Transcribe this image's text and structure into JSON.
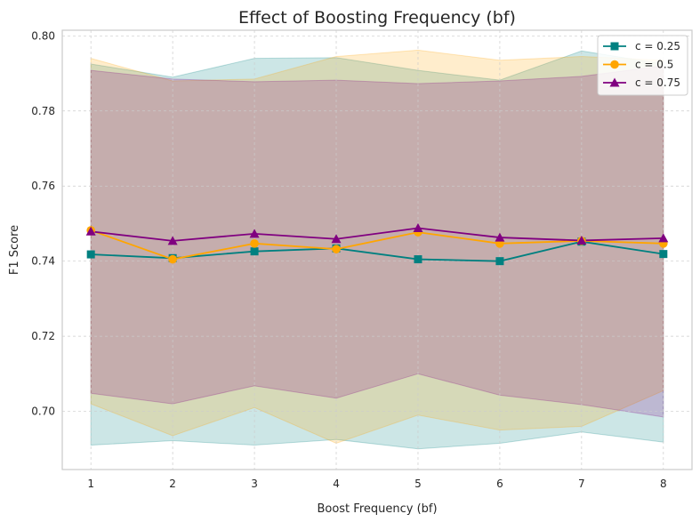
{
  "chart_data": {
    "type": "line",
    "title": "Effect of Boosting Frequency (bf)",
    "xlabel": "Boost Frequency (bf)",
    "ylabel": "F1 Score",
    "x": [
      1,
      2,
      3,
      4,
      5,
      6,
      7,
      8
    ],
    "xlim": [
      0.65,
      8.35
    ],
    "ylim": [
      0.6845,
      0.8015
    ],
    "xticks": [
      1,
      2,
      3,
      4,
      5,
      6,
      7,
      8
    ],
    "yticks": [
      "0.70",
      "0.72",
      "0.74",
      "0.76",
      "0.78",
      "0.80"
    ],
    "grid": true,
    "legend_position": "top-right",
    "series": [
      {
        "name": "c = 0.25",
        "label": "c = 0.25",
        "color": "#008080",
        "marker": "square",
        "values": [
          0.7418,
          0.7408,
          0.7426,
          0.7434,
          0.7405,
          0.74,
          0.7452,
          0.7419
        ],
        "upper": [
          0.7925,
          0.789,
          0.794,
          0.7942,
          0.7908,
          0.7882,
          0.796,
          0.7925
        ],
        "lower": [
          0.691,
          0.6922,
          0.691,
          0.6925,
          0.69,
          0.6915,
          0.6945,
          0.6918
        ]
      },
      {
        "name": "c = 0.5",
        "label": "c = 0.5",
        "color": "#FFA500",
        "marker": "circle",
        "values": [
          0.7482,
          0.7405,
          0.7447,
          0.7432,
          0.7477,
          0.7447,
          0.7454,
          0.7447
        ],
        "upper": [
          0.794,
          0.788,
          0.7885,
          0.7945,
          0.7962,
          0.7935,
          0.7945,
          0.7935
        ],
        "lower": [
          0.702,
          0.6935,
          0.701,
          0.6915,
          0.699,
          0.695,
          0.696,
          0.7055
        ]
      },
      {
        "name": "c = 0.75",
        "label": "c = 0.75",
        "color": "#800080",
        "marker": "triangle",
        "values": [
          0.7479,
          0.7454,
          0.7473,
          0.7459,
          0.7488,
          0.7463,
          0.7455,
          0.7461
        ],
        "upper": [
          0.7908,
          0.7885,
          0.7878,
          0.7882,
          0.7873,
          0.788,
          0.7892,
          0.792
        ],
        "lower": [
          0.7048,
          0.702,
          0.7068,
          0.7035,
          0.71,
          0.7043,
          0.7018,
          0.6985
        ]
      }
    ]
  }
}
